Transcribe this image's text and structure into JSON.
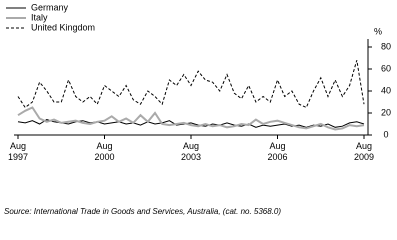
{
  "chart_data": {
    "type": "line",
    "y_unit": "%",
    "source": "Source: International Trade in Goods and Services, Australia, (cat. no. 5368.0)",
    "categories": [
      "Aug 1997",
      null,
      null,
      null,
      null,
      null,
      null,
      null,
      null,
      null,
      null,
      null,
      "Aug 2000",
      null,
      null,
      null,
      null,
      null,
      null,
      null,
      null,
      null,
      null,
      null,
      "Aug 2003",
      null,
      null,
      null,
      null,
      null,
      null,
      null,
      null,
      null,
      null,
      null,
      "Aug 2006",
      null,
      null,
      null,
      null,
      null,
      null,
      null,
      null,
      null,
      null,
      null,
      "Aug 2009"
    ],
    "series": [
      {
        "name": "Germany",
        "color": "#000000",
        "width": 1,
        "dashed": false,
        "values": [
          12,
          11,
          13,
          10,
          14,
          12,
          11,
          10,
          12,
          13,
          11,
          12,
          10,
          11,
          12,
          10,
          11,
          9,
          12,
          10,
          11,
          13,
          9,
          10,
          11,
          9,
          8,
          10,
          9,
          11,
          9,
          8,
          10,
          7,
          9,
          8,
          9,
          10,
          8,
          9,
          7,
          9,
          8,
          10,
          7,
          8,
          11,
          12,
          10
        ]
      },
      {
        "name": "Italy",
        "color": "#aaaaaa",
        "width": 2,
        "dashed": false,
        "values": [
          18,
          22,
          25,
          15,
          12,
          14,
          11,
          12,
          13,
          11,
          10,
          12,
          13,
          17,
          12,
          15,
          11,
          18,
          12,
          20,
          10,
          9,
          10,
          11,
          9,
          8,
          10,
          8,
          9,
          7,
          8,
          10,
          9,
          14,
          10,
          12,
          13,
          11,
          9,
          7,
          6,
          8,
          10,
          7,
          5,
          6,
          9,
          8,
          9
        ]
      },
      {
        "name": "United Kingdom",
        "color": "#000000",
        "width": 1,
        "dashed": true,
        "values": [
          35,
          25,
          30,
          48,
          40,
          30,
          30,
          50,
          35,
          30,
          35,
          28,
          45,
          40,
          35,
          45,
          32,
          28,
          40,
          35,
          28,
          50,
          45,
          55,
          45,
          58,
          50,
          48,
          40,
          55,
          38,
          33,
          45,
          30,
          35,
          30,
          50,
          35,
          40,
          28,
          25,
          40,
          52,
          35,
          50,
          35,
          45,
          68,
          28
        ]
      }
    ],
    "ylim": [
      0,
      80
    ],
    "yticks": [
      0,
      20,
      40,
      60,
      80
    ]
  }
}
